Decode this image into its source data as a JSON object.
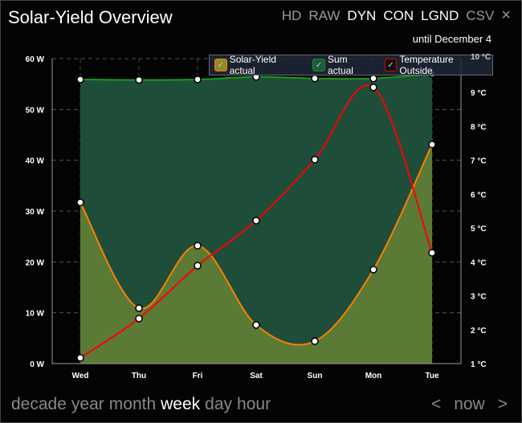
{
  "header": {
    "title": "Solar-Yield Overview",
    "toolbar": [
      {
        "label": "HD",
        "active": false
      },
      {
        "label": "RAW",
        "active": false
      },
      {
        "label": "DYN",
        "active": true
      },
      {
        "label": "CON",
        "active": true
      },
      {
        "label": "LGND",
        "active": true
      },
      {
        "label": "CSV",
        "active": false
      }
    ],
    "close_icon": "×"
  },
  "until": "until December 4",
  "legend": [
    {
      "label": "Solar-Yield actual",
      "color": "#ff7f00",
      "fill": "#8f8a2a"
    },
    {
      "label": "Sum actual",
      "color": "#1a8a2a",
      "fill": "#1e5a3a"
    },
    {
      "label": "Temperature Outside",
      "color": "#e00000",
      "fill": "#111"
    }
  ],
  "colors": {
    "solar_fill": "#5a7a35",
    "solar_line": "#ff7f00",
    "sum_fill": "#1e4d3a",
    "sum_line": "#1a9a1a",
    "temp_line": "#ff0000"
  },
  "chart_data": {
    "type": "area",
    "categories": [
      "Wed",
      "Thu",
      "Fri",
      "Sat",
      "Sun",
      "Mon",
      "Tue"
    ],
    "y_left": {
      "ticks": [
        "0 W",
        "10 W",
        "20 W",
        "30 W",
        "40 W",
        "50 W",
        "60 W"
      ],
      "ylim": [
        0,
        60
      ]
    },
    "y_right": {
      "ticks": [
        "1 °C",
        "2 °C",
        "3 °C",
        "4 °C",
        "5 °C",
        "6 °C",
        "7 °C",
        "8 °C",
        "9 °C",
        "10 °C"
      ],
      "ylim": [
        1,
        10
      ]
    },
    "grid": true,
    "series": [
      {
        "name": "Solar-Yield actual",
        "axis": "left",
        "values": [
          31.7,
          10.9,
          23.2,
          7.6,
          4.4,
          18.5,
          43.1
        ]
      },
      {
        "name": "Sum actual",
        "axis": "left",
        "values": [
          55.9,
          55.8,
          55.9,
          56.4,
          56.1,
          56.1,
          57.0
        ]
      },
      {
        "name": "Temperature Outside",
        "axis": "right",
        "values": [
          1.17,
          2.33,
          3.89,
          5.22,
          7.02,
          9.15,
          4.27
        ]
      }
    ]
  },
  "periods": [
    {
      "label": "decade",
      "selected": false
    },
    {
      "label": "year",
      "selected": false
    },
    {
      "label": "month",
      "selected": false
    },
    {
      "label": "week",
      "selected": true
    },
    {
      "label": "day",
      "selected": false
    },
    {
      "label": "hour",
      "selected": false
    }
  ],
  "nav": {
    "prev": "<",
    "now": "now",
    "next": ">"
  }
}
